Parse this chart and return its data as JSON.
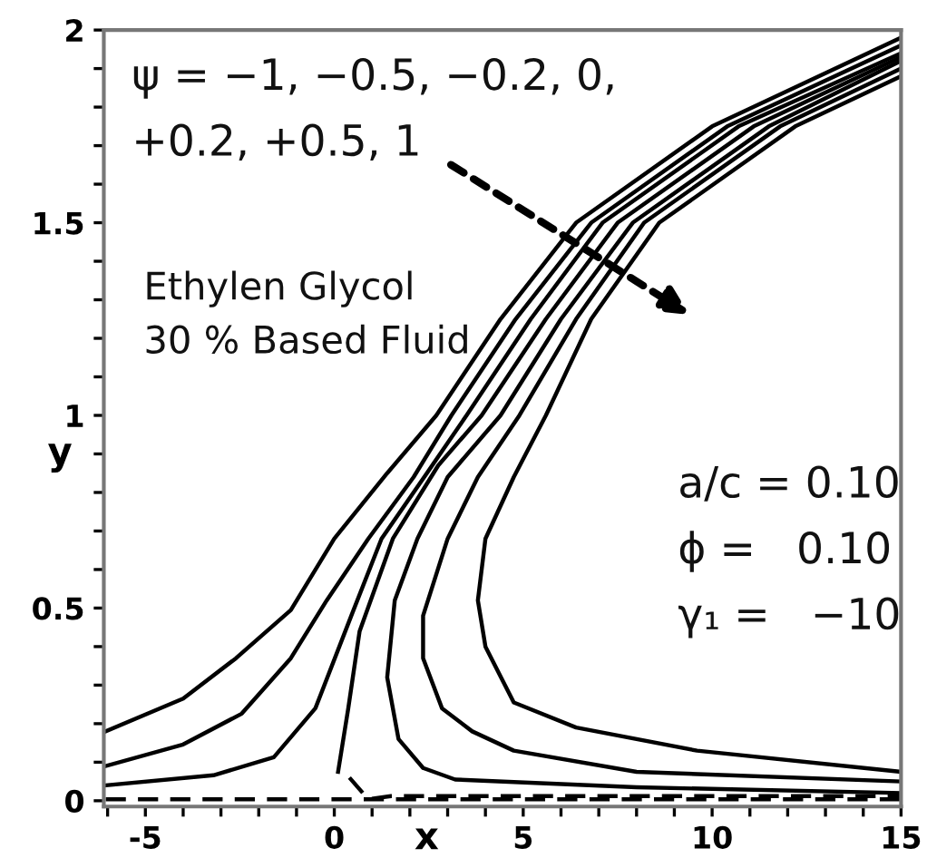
{
  "chart_data": {
    "type": "line",
    "xlabel": "x",
    "ylabel": "y",
    "xlim": [
      -6.1,
      15
    ],
    "ylim": [
      -0.015,
      2
    ],
    "xticks": [
      {
        "value": -6,
        "label": null
      },
      -5,
      {
        "value": -4,
        "label": null
      },
      {
        "value": -3,
        "label": null
      },
      {
        "value": -2,
        "label": null
      },
      {
        "value": -1,
        "label": null
      },
      0,
      {
        "value": 1,
        "label": null
      },
      {
        "value": 2,
        "label": null
      },
      {
        "value": 3,
        "label": null
      },
      {
        "value": 4,
        "label": null
      },
      5,
      {
        "value": 6,
        "label": null
      },
      {
        "value": 7,
        "label": null
      },
      {
        "value": 8,
        "label": null
      },
      {
        "value": 9,
        "label": null
      },
      10,
      {
        "value": 11,
        "label": null
      },
      {
        "value": 12,
        "label": null
      },
      {
        "value": 13,
        "label": null
      },
      {
        "value": 14,
        "label": null
      },
      15
    ],
    "yticks": [
      0,
      {
        "value": 0.1,
        "label": null
      },
      {
        "value": 0.2,
        "label": null
      },
      {
        "value": 0.3,
        "label": null
      },
      {
        "value": 0.4,
        "label": null
      },
      0.5,
      {
        "value": 0.6,
        "label": null
      },
      {
        "value": 0.7,
        "label": null
      },
      {
        "value": 0.8,
        "label": null
      },
      {
        "value": 0.9,
        "label": null
      },
      1,
      {
        "value": 1.1,
        "label": null
      },
      {
        "value": 1.2,
        "label": null
      },
      {
        "value": 1.3,
        "label": null
      },
      {
        "value": 1.4,
        "label": null
      },
      1.5,
      {
        "value": 1.6,
        "label": null
      },
      {
        "value": 1.7,
        "label": null
      },
      {
        "value": 1.8,
        "label": null
      },
      {
        "value": 1.9,
        "label": null
      },
      2
    ],
    "grid": false,
    "legend": false,
    "marker": "none",
    "line_style": "solid",
    "series": [
      {
        "color": "#000000",
        "x": [
          -6.05,
          -4.0,
          -2.6,
          -1.15,
          0.0,
          1.4,
          2.7,
          4.4,
          6.4,
          10.0,
          15
        ],
        "values": [
          0.18,
          0.265,
          0.37,
          0.495,
          0.68,
          0.85,
          1.0,
          1.25,
          1.5,
          1.75,
          1.98
        ]
      },
      {
        "color": "#000000",
        "x": [
          -6.05,
          -4.0,
          -2.45,
          -1.15,
          -0.2,
          0.9,
          2.1,
          3.1,
          4.8,
          6.8,
          10.4,
          15
        ],
        "values": [
          0.09,
          0.146,
          0.226,
          0.37,
          0.52,
          0.68,
          0.84,
          1.0,
          1.25,
          1.5,
          1.75,
          1.96
        ]
      },
      {
        "color": "#000000",
        "x": [
          -6.05,
          -3.2,
          -1.6,
          -0.5,
          0.45,
          1.25,
          2.45,
          3.5,
          5.2,
          7.1,
          10.7,
          15
        ],
        "values": [
          0.04,
          0.066,
          0.113,
          0.24,
          0.48,
          0.68,
          0.85,
          1.0,
          1.25,
          1.5,
          1.75,
          1.94
        ]
      },
      {
        "color": "#000000",
        "x": [
          0.1,
          0.37,
          0.67,
          1.55,
          2.75,
          3.9,
          5.6,
          7.5,
          11.1,
          15
        ],
        "values": [
          0.075,
          0.24,
          0.44,
          0.68,
          0.87,
          1.0,
          1.25,
          1.5,
          1.75,
          1.93
        ]
      },
      {
        "color": "#000000",
        "x": [
          15,
          8.0,
          3.2,
          2.35,
          1.7,
          1.4,
          1.6,
          2.2,
          3.0,
          4.4,
          6.0,
          7.9,
          11.5,
          15
        ],
        "values": [
          0.02,
          0.035,
          0.055,
          0.085,
          0.16,
          0.32,
          0.52,
          0.68,
          0.84,
          1.0,
          1.25,
          1.5,
          1.75,
          1.92
        ]
      },
      {
        "color": "#000000",
        "x": [
          15,
          8.0,
          4.75,
          3.65,
          2.85,
          2.35,
          2.35,
          3.0,
          3.8,
          4.9,
          6.4,
          8.2,
          11.8,
          15
        ],
        "values": [
          0.05,
          0.075,
          0.13,
          0.18,
          0.24,
          0.37,
          0.48,
          0.68,
          0.84,
          1.0,
          1.25,
          1.5,
          1.75,
          1.9
        ]
      },
      {
        "color": "#000000",
        "x": [
          15,
          9.6,
          6.4,
          4.75,
          4.0,
          3.8,
          4.0,
          4.75,
          5.6,
          6.8,
          8.6,
          12.2,
          15
        ],
        "values": [
          0.075,
          0.13,
          0.19,
          0.255,
          0.4,
          0.52,
          0.68,
          0.84,
          1.0,
          1.25,
          1.5,
          1.75,
          1.88
        ]
      },
      {
        "color": "#000000",
        "line_style": "dashed",
        "x": [
          -6.05,
          0.6,
          1.5,
          15
        ],
        "values": [
          0.004,
          0.004,
          0.004,
          0.004
        ]
      },
      {
        "color": "#000000",
        "line_style": "dashed",
        "x": [
          0.4,
          0.9,
          1.5,
          15
        ],
        "values": [
          0.06,
          0.004,
          0.012,
          0.012
        ]
      }
    ],
    "annotations": [
      "ψ = −1, −0.5, −0.2, 0,\n+0.2, +0.5, 1",
      "Ethylen Glycol\n30 % Based Fluid",
      "a/c = 0.10\nϕ =   0.10\nγ₁ =   −10"
    ]
  }
}
